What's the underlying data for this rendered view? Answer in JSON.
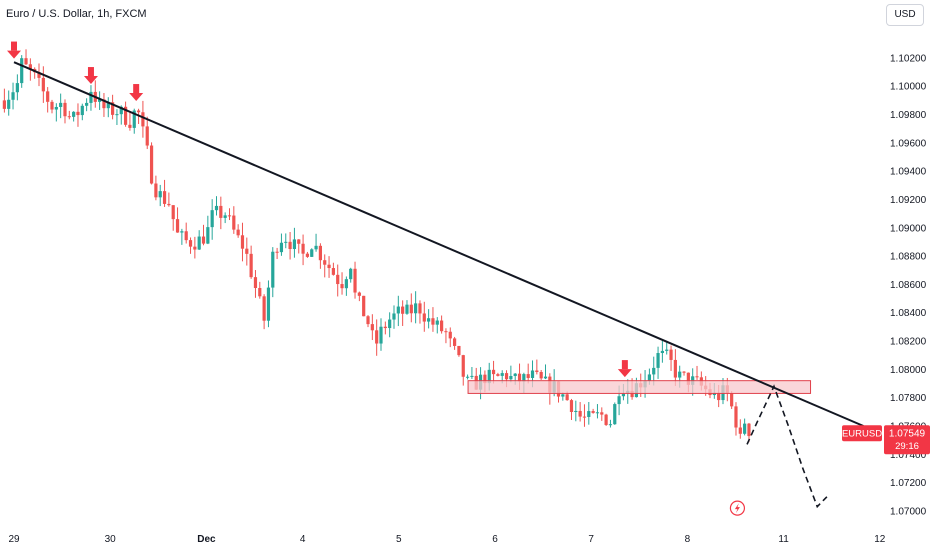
{
  "header": {
    "title": "Euro / U.S. Dollar, 1h, FXCM"
  },
  "toolbar": {
    "currency_label": "USD"
  },
  "price_tag": {
    "symbol": "EURUSD",
    "price": "1.07549",
    "countdown": "29:16"
  },
  "colors": {
    "bullish": "#26a69a",
    "bearish": "#ef5350",
    "arrow": "#f23645",
    "trendline": "#131722",
    "zone_fill": "#f8c8cc",
    "zone_border": "#e0404a",
    "price_tag_bg": "#f23645"
  },
  "icons": {
    "marker": "arrow-down-icon",
    "event": "lightning-icon"
  },
  "chart_data": {
    "type": "candlestick",
    "symbol": "Euro / U.S. Dollar",
    "interval": "1h",
    "source": "FXCM",
    "ylim": [
      1.0695,
      1.1027
    ],
    "yticks": [
      "1.10200",
      "1.10000",
      "1.09800",
      "1.09600",
      "1.09400",
      "1.09200",
      "1.09000",
      "1.08800",
      "1.08600",
      "1.08400",
      "1.08200",
      "1.08000",
      "1.07800",
      "1.07600",
      "1.07400",
      "1.07200",
      "1.07000"
    ],
    "xticks": [
      {
        "label": "29",
        "pos": 0.0
      },
      {
        "label": "30",
        "pos": 1.0
      },
      {
        "label": "Dec",
        "pos": 2.0,
        "bold": true
      },
      {
        "label": "4",
        "pos": 3.0
      },
      {
        "label": "5",
        "pos": 4.0
      },
      {
        "label": "6",
        "pos": 5.0
      },
      {
        "label": "7",
        "pos": 6.0
      },
      {
        "label": "8",
        "pos": 7.0
      },
      {
        "label": "11",
        "pos": 8.0
      },
      {
        "label": "12",
        "pos": 9.0
      }
    ],
    "price_path": [
      [
        -0.1,
        1.099
      ],
      [
        0.05,
        1.1003
      ],
      [
        0.08,
        1.1016
      ],
      [
        0.2,
        1.1008
      ],
      [
        0.3,
        1.0996
      ],
      [
        0.4,
        1.0985
      ],
      [
        0.5,
        1.0988
      ],
      [
        0.6,
        1.0975
      ],
      [
        0.75,
        1.099
      ],
      [
        0.8,
        1.0998
      ],
      [
        0.9,
        1.0985
      ],
      [
        1.0,
        1.0983
      ],
      [
        1.1,
        1.0982
      ],
      [
        1.2,
        1.0975
      ],
      [
        1.28,
        1.0985
      ],
      [
        1.38,
        1.0955
      ],
      [
        1.45,
        1.093
      ],
      [
        1.55,
        1.092
      ],
      [
        1.6,
        1.092
      ],
      [
        1.7,
        1.0895
      ],
      [
        1.8,
        1.089
      ],
      [
        1.9,
        1.089
      ],
      [
        2.0,
        1.0895
      ],
      [
        2.07,
        1.091
      ],
      [
        2.2,
        1.091
      ],
      [
        2.3,
        1.0895
      ],
      [
        2.4,
        1.0885
      ],
      [
        2.5,
        1.086
      ],
      [
        2.6,
        1.0835
      ],
      [
        2.65,
        1.086
      ],
      [
        2.7,
        1.0885
      ],
      [
        2.8,
        1.0895
      ],
      [
        2.9,
        1.0888
      ],
      [
        3.0,
        1.088
      ],
      [
        3.1,
        1.089
      ],
      [
        3.2,
        1.088
      ],
      [
        3.3,
        1.087
      ],
      [
        3.4,
        1.086
      ],
      [
        3.5,
        1.0875
      ],
      [
        3.55,
        1.085
      ],
      [
        3.6,
        1.0845
      ],
      [
        3.7,
        1.083
      ],
      [
        3.75,
        1.0815
      ],
      [
        3.8,
        1.0825
      ],
      [
        3.9,
        1.0835
      ],
      [
        4.0,
        1.084
      ],
      [
        4.1,
        1.084
      ],
      [
        4.2,
        1.0845
      ],
      [
        4.3,
        1.0835
      ],
      [
        4.4,
        1.083
      ],
      [
        4.5,
        1.0825
      ],
      [
        4.55,
        1.0815
      ],
      [
        4.6,
        1.081
      ],
      [
        4.7,
        1.079
      ],
      [
        4.8,
        1.079
      ],
      [
        4.9,
        1.0795
      ],
      [
        5.0,
        1.0793
      ],
      [
        5.1,
        1.0797
      ],
      [
        5.2,
        1.0792
      ],
      [
        5.3,
        1.0793
      ],
      [
        5.4,
        1.0795
      ],
      [
        5.5,
        1.079
      ],
      [
        5.6,
        1.0788
      ],
      [
        5.7,
        1.0782
      ],
      [
        5.8,
        1.0775
      ],
      [
        5.9,
        1.0765
      ],
      [
        6.0,
        1.0765
      ],
      [
        6.1,
        1.0768
      ],
      [
        6.2,
        1.0763
      ],
      [
        6.25,
        1.0775
      ],
      [
        6.3,
        1.079
      ],
      [
        6.4,
        1.0785
      ],
      [
        6.5,
        1.079
      ],
      [
        6.6,
        1.0798
      ],
      [
        6.7,
        1.081
      ],
      [
        6.8,
        1.0808
      ],
      [
        6.9,
        1.0795
      ],
      [
        7.0,
        1.0793
      ],
      [
        7.1,
        1.079
      ],
      [
        7.2,
        1.0785
      ],
      [
        7.3,
        1.078
      ],
      [
        7.4,
        1.0785
      ],
      [
        7.5,
        1.0765
      ],
      [
        7.55,
        1.075
      ],
      [
        7.6,
        1.0765
      ],
      [
        7.65,
        1.0755
      ]
    ],
    "candle_spacing": 0.045,
    "marker_arrows": [
      {
        "x": 0.0,
        "y": 1.1016
      },
      {
        "x": 0.8,
        "y": 1.0998
      },
      {
        "x": 1.27,
        "y": 1.0986
      },
      {
        "x": 6.35,
        "y": 1.0791
      }
    ],
    "trendline": {
      "x1": 0.0,
      "y1": 1.1017,
      "x2": 8.83,
      "y2": 1.076
    },
    "resistance_zone": {
      "x1": 4.72,
      "x2": 8.28,
      "y1": 1.0783,
      "y2": 1.0792
    },
    "projection_path": [
      [
        7.62,
        1.0747
      ],
      [
        7.72,
        1.0762
      ],
      [
        7.9,
        1.0788
      ],
      [
        8.05,
        1.076
      ],
      [
        8.2,
        1.073
      ],
      [
        8.35,
        1.0703
      ],
      [
        8.45,
        1.071
      ]
    ],
    "event_marker": {
      "x": 7.52,
      "y": 1.0702
    },
    "last_price": 1.07549
  }
}
